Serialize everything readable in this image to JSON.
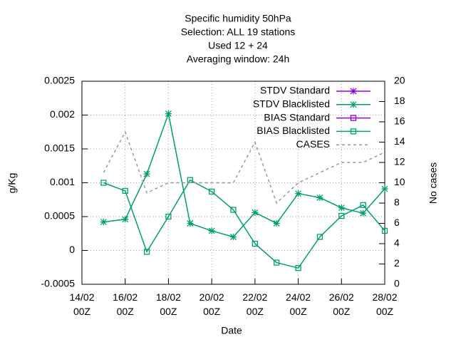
{
  "chart_data": {
    "type": "line",
    "title": [
      "Specific humidity 50hPa",
      "Selection: ALL      19 stations",
      "Used  12  + 24",
      "Averaging window: 24h"
    ],
    "xlabel": "Date",
    "ylabel": "g/Kg",
    "y2label": "No cases",
    "x": [
      15,
      16,
      17,
      18,
      19,
      20,
      21,
      22,
      23,
      24,
      25,
      26,
      27,
      28
    ],
    "xlim": [
      14,
      28
    ],
    "xticks": [
      {
        "value": 14,
        "label": "14/02\n00Z"
      },
      {
        "value": 16,
        "label": "16/02\n00Z"
      },
      {
        "value": 18,
        "label": "18/02\n00Z"
      },
      {
        "value": 20,
        "label": "20/02\n00Z"
      },
      {
        "value": 22,
        "label": "22/02\n00Z"
      },
      {
        "value": 24,
        "label": "24/02\n00Z"
      },
      {
        "value": 26,
        "label": "26/02\n00Z"
      },
      {
        "value": 28,
        "label": "28/02\n00Z"
      }
    ],
    "ylim": [
      -0.0005,
      0.0025
    ],
    "yticks": [
      -0.0005,
      0,
      0.0005,
      0.001,
      0.0015,
      0.002,
      0.0025
    ],
    "y2lim": [
      0,
      20
    ],
    "y2ticks": [
      0,
      2,
      4,
      6,
      8,
      10,
      12,
      14,
      16,
      18,
      20
    ],
    "grid": true,
    "legend": "top-right",
    "series": [
      {
        "name": "STDV Standard",
        "color": "#9400d3",
        "marker": "star",
        "values": [
          null,
          null,
          null,
          null,
          null,
          null,
          null,
          null,
          null,
          null,
          null,
          null,
          null,
          null
        ]
      },
      {
        "name": "STDV Blacklisted",
        "color": "#009e73",
        "marker": "star",
        "values": [
          0.00042,
          0.00046,
          0.00113,
          0.00202,
          0.0004,
          0.00029,
          0.0002,
          0.00056,
          0.0004,
          0.00084,
          0.00078,
          0.00063,
          0.00055,
          0.00091
        ]
      },
      {
        "name": "BIAS Standard",
        "color": "#9400d3",
        "marker": "square",
        "values": [
          null,
          null,
          null,
          null,
          null,
          null,
          null,
          null,
          null,
          null,
          null,
          null,
          null,
          null
        ]
      },
      {
        "name": "BIAS Blacklisted",
        "color": "#009e73",
        "marker": "square",
        "values": [
          0.001,
          0.00088,
          -2e-05,
          0.0005,
          0.00104,
          0.00087,
          0.0006,
          0.0001,
          -0.00018,
          -0.00026,
          0.0002,
          0.00051,
          0.00067,
          0.00029
        ]
      },
      {
        "name": "CASES",
        "color": "#999999",
        "marker": "none",
        "dashed": true,
        "axis": "y2",
        "values": [
          11,
          15,
          9,
          10,
          10,
          10,
          10,
          14,
          8,
          10,
          11,
          12,
          12,
          13
        ]
      }
    ]
  }
}
